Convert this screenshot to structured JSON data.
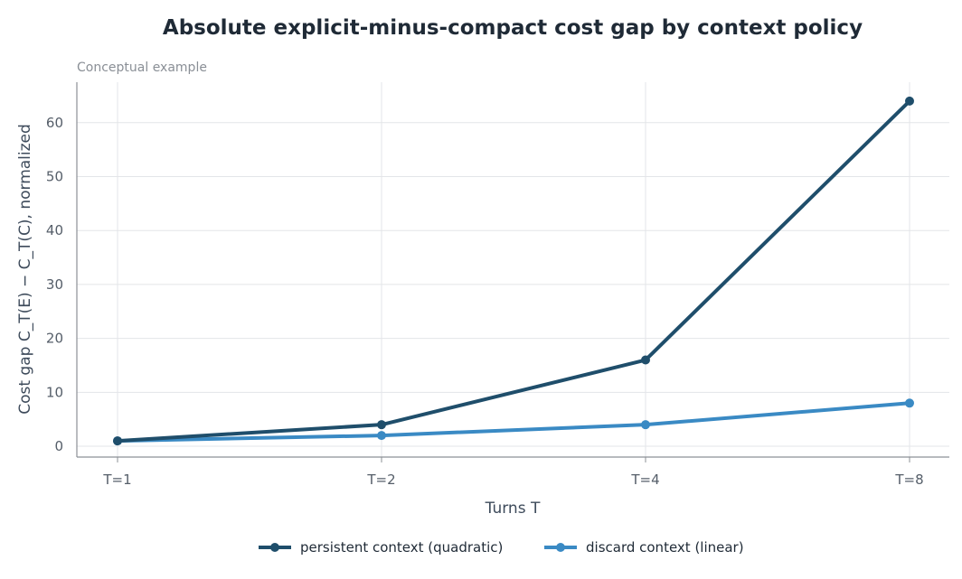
{
  "chart_data": {
    "type": "line",
    "title": "Absolute explicit-minus-compact cost gap by context policy",
    "subtitle": "Conceptual example",
    "xlabel": "Turns T",
    "ylabel": "Cost gap C_T(E) − C_T(C), normalized",
    "categories": [
      "T=1",
      "T=2",
      "T=4",
      "T=8"
    ],
    "ylim": [
      -2,
      67.5
    ],
    "yticks": [
      0,
      10,
      20,
      30,
      40,
      50,
      60
    ],
    "grid": true,
    "legend_position": "bottom",
    "series": [
      {
        "name": "persistent context (quadratic)",
        "values": [
          1,
          4,
          16,
          64
        ],
        "color": "#1f4e6b"
      },
      {
        "name": "discard context (linear)",
        "values": [
          1,
          2,
          4,
          8
        ],
        "color": "#3a8ac4"
      }
    ]
  }
}
